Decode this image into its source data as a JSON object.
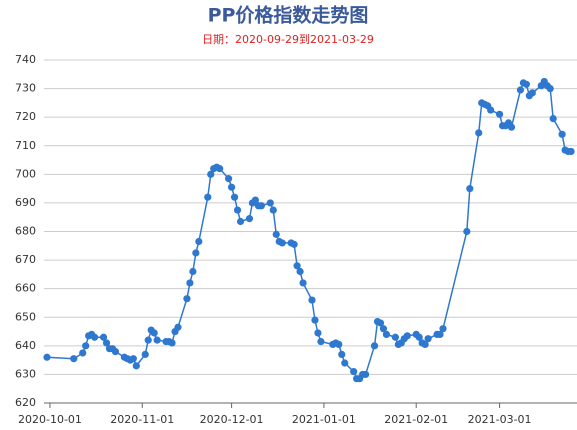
{
  "chart_data": {
    "type": "line",
    "title": "PP价格指数走势图",
    "subtitle": "日期：2020-09-29到2021-03-29",
    "color": "#2f78d0",
    "grid": true,
    "x": [
      "2020-09-30",
      "2020-10-09",
      "2020-10-12",
      "2020-10-13",
      "2020-10-14",
      "2020-10-15",
      "2020-10-16",
      "2020-10-19",
      "2020-10-20",
      "2020-10-21",
      "2020-10-22",
      "2020-10-23",
      "2020-10-26",
      "2020-10-27",
      "2020-10-28",
      "2020-10-29",
      "2020-10-30",
      "2020-11-02",
      "2020-11-03",
      "2020-11-04",
      "2020-11-05",
      "2020-11-06",
      "2020-11-09",
      "2020-11-10",
      "2020-11-11",
      "2020-11-12",
      "2020-11-13",
      "2020-11-16",
      "2020-11-17",
      "2020-11-18",
      "2020-11-19",
      "2020-11-20",
      "2020-11-23",
      "2020-11-24",
      "2020-11-25",
      "2020-11-26",
      "2020-11-27",
      "2020-11-30",
      "2020-12-01",
      "2020-12-02",
      "2020-12-03",
      "2020-12-04",
      "2020-12-07",
      "2020-12-08",
      "2020-12-09",
      "2020-12-10",
      "2020-12-11",
      "2020-12-14",
      "2020-12-15",
      "2020-12-16",
      "2020-12-17",
      "2020-12-18",
      "2020-12-21",
      "2020-12-22",
      "2020-12-23",
      "2020-12-24",
      "2020-12-25",
      "2020-12-28",
      "2020-12-29",
      "2020-12-30",
      "2020-12-31",
      "2021-01-04",
      "2021-01-05",
      "2021-01-06",
      "2021-01-07",
      "2021-01-08",
      "2021-01-11",
      "2021-01-12",
      "2021-01-13",
      "2021-01-14",
      "2021-01-15",
      "2021-01-18",
      "2021-01-19",
      "2021-01-20",
      "2021-01-21",
      "2021-01-22",
      "2021-01-25",
      "2021-01-26",
      "2021-01-27",
      "2021-01-28",
      "2021-01-29",
      "2021-02-01",
      "2021-02-02",
      "2021-02-03",
      "2021-02-04",
      "2021-02-05",
      "2021-02-08",
      "2021-02-09",
      "2021-02-10",
      "2021-02-18",
      "2021-02-19",
      "2021-02-22",
      "2021-02-23",
      "2021-02-24",
      "2021-02-25",
      "2021-02-26",
      "2021-03-01",
      "2021-03-02",
      "2021-03-03",
      "2021-03-04",
      "2021-03-05",
      "2021-03-08",
      "2021-03-09",
      "2021-03-10",
      "2021-03-11",
      "2021-03-12",
      "2021-03-15",
      "2021-03-16",
      "2021-03-17",
      "2021-03-18",
      "2021-03-19",
      "2021-03-22",
      "2021-03-23",
      "2021-03-24",
      "2021-03-25"
    ],
    "values": [
      636,
      635.5,
      637.5,
      640,
      643.5,
      644,
      643,
      643,
      641,
      639,
      639,
      638,
      636,
      635.5,
      635,
      635.5,
      633,
      637,
      642,
      645.5,
      644.5,
      642,
      641.5,
      641.5,
      641,
      645,
      646.5,
      656.5,
      662,
      666,
      672.5,
      676.5,
      692,
      700,
      702,
      702.5,
      702,
      698.5,
      695.5,
      692,
      687.5,
      683.5,
      684.5,
      690,
      691,
      689,
      689,
      690,
      687.5,
      679,
      676.5,
      676,
      676,
      675.5,
      668,
      666,
      662,
      656,
      649,
      644.5,
      641.5,
      640.5,
      641,
      640.5,
      637,
      634,
      631,
      628.5,
      628.5,
      630,
      630,
      640,
      648.5,
      648,
      646,
      644,
      643,
      640.5,
      641,
      642.5,
      643.5,
      644,
      643,
      641,
      640.5,
      642.5,
      644,
      644,
      646,
      680,
      695,
      714.5,
      725,
      724.5,
      724,
      722.5,
      721,
      717,
      717,
      718,
      716.5,
      729.5,
      732,
      731.5,
      727.5,
      728.5,
      731,
      732.5,
      731,
      730,
      719.5,
      714,
      708.5,
      708,
      708
    ],
    "xlim": [
      "2020-09-29",
      "2021-03-27"
    ],
    "xticks": [
      "2020-10-01",
      "2020-11-01",
      "2020-12-01",
      "2021-01-01",
      "2021-02-01",
      "2021-03-01"
    ],
    "ylim": [
      620,
      740
    ],
    "yticks": [
      620,
      630,
      640,
      650,
      660,
      670,
      680,
      690,
      700,
      710,
      720,
      730,
      740
    ]
  }
}
